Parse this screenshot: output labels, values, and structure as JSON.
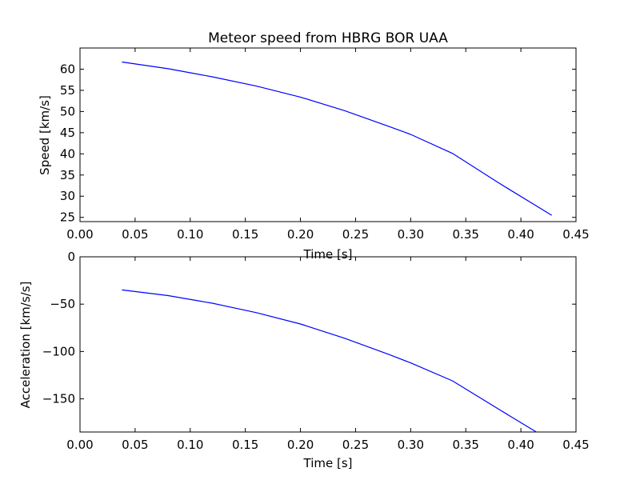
{
  "chart_data": [
    {
      "type": "line",
      "title": "Meteor speed from  HBRG BOR UAA",
      "xlabel": "Time [s]",
      "ylabel": "Speed [km/s]",
      "xlim": [
        0.0,
        0.45
      ],
      "ylim": [
        24,
        65
      ],
      "xticks": [
        "0.00",
        "0.05",
        "0.10",
        "0.15",
        "0.20",
        "0.25",
        "0.30",
        "0.35",
        "0.40",
        "0.45"
      ],
      "yticks": [
        "25",
        "30",
        "35",
        "40",
        "45",
        "50",
        "55",
        "60"
      ],
      "series": [
        {
          "color": "#0000ff",
          "x": [
            0.038,
            0.08,
            0.12,
            0.16,
            0.2,
            0.24,
            0.28,
            0.3,
            0.338,
            0.38,
            0.428
          ],
          "y": [
            61.7,
            60.1,
            58.2,
            56.0,
            53.4,
            50.2,
            46.5,
            44.6,
            40.1,
            33.1,
            25.5
          ]
        }
      ],
      "grid": false
    },
    {
      "type": "line",
      "xlabel": "Time [s]",
      "ylabel": "Acceleration [km/s/s]",
      "xlim": [
        0.0,
        0.45
      ],
      "ylim": [
        -185,
        0
      ],
      "xticks": [
        "0.00",
        "0.05",
        "0.10",
        "0.15",
        "0.20",
        "0.25",
        "0.30",
        "0.35",
        "0.40",
        "0.45"
      ],
      "yticks": [
        "0",
        "−50",
        "−100",
        "−150"
      ],
      "series": [
        {
          "color": "#0000ff",
          "x": [
            0.038,
            0.08,
            0.12,
            0.16,
            0.2,
            0.24,
            0.28,
            0.3,
            0.338,
            0.38,
            0.414
          ],
          "y": [
            -35,
            -41,
            -49,
            -59,
            -71,
            -86,
            -103,
            -112,
            -131,
            -161,
            -185
          ]
        }
      ],
      "grid": false
    }
  ]
}
